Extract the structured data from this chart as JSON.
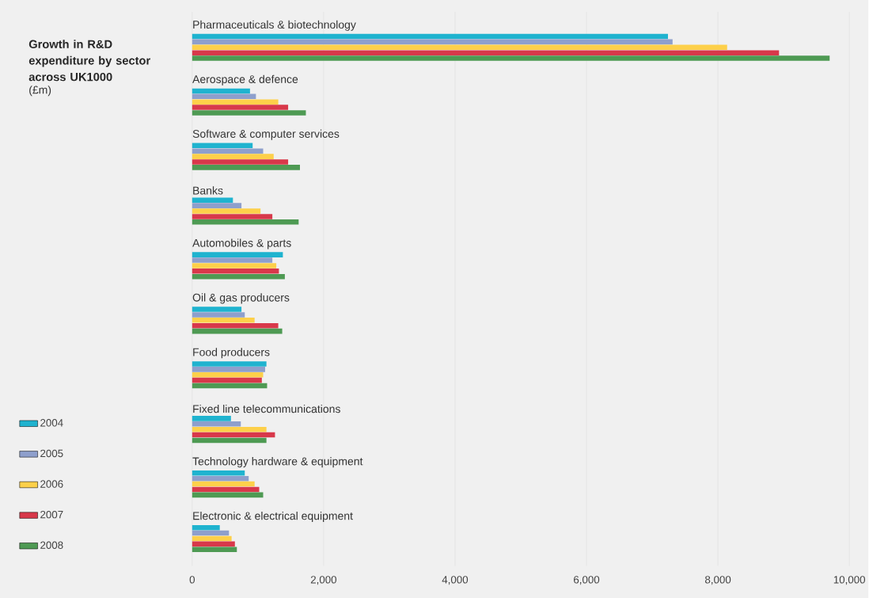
{
  "chart_data": {
    "type": "bar",
    "orientation": "horizontal",
    "title": "Growth in R&D expenditure by sector across UK1000",
    "subtitle": "(£m)",
    "categories": [
      "Pharmaceuticals & biotechnology",
      "Aerospace & defence",
      "Software & computer services",
      "Banks",
      "Automobiles & parts",
      "Oil & gas producers",
      "Food producers",
      "Fixed line telecommunications",
      "Technology hardware & equipment",
      "Electronic & electrical equipment"
    ],
    "series": [
      {
        "name": "2004",
        "color": "#1fb3cf",
        "values": [
          7240,
          880,
          920,
          620,
          1380,
          750,
          1130,
          590,
          800,
          420
        ]
      },
      {
        "name": "2005",
        "color": "#8e9fcc",
        "values": [
          7310,
          970,
          1080,
          750,
          1220,
          800,
          1110,
          740,
          860,
          560
        ]
      },
      {
        "name": "2006",
        "color": "#fdd04a",
        "values": [
          8140,
          1310,
          1240,
          1040,
          1280,
          950,
          1080,
          1130,
          950,
          600
        ]
      },
      {
        "name": "2007",
        "color": "#d8384a",
        "values": [
          8930,
          1460,
          1460,
          1220,
          1320,
          1310,
          1060,
          1260,
          1020,
          650
        ]
      },
      {
        "name": "2008",
        "color": "#4e9a53",
        "values": [
          9700,
          1730,
          1640,
          1620,
          1410,
          1370,
          1140,
          1130,
          1080,
          680
        ]
      }
    ],
    "xlim": [
      0,
      10000
    ],
    "xticks": [
      0,
      {
        "value": 2000,
        "label": "2,000"
      },
      {
        "value": 4000,
        "label": "4,000"
      },
      {
        "value": 6000,
        "label": "6,000"
      },
      {
        "value": 8000,
        "label": "8,000"
      },
      {
        "value": 10000,
        "label": "10,000"
      }
    ],
    "grid": "x",
    "legend": "bottom left"
  }
}
